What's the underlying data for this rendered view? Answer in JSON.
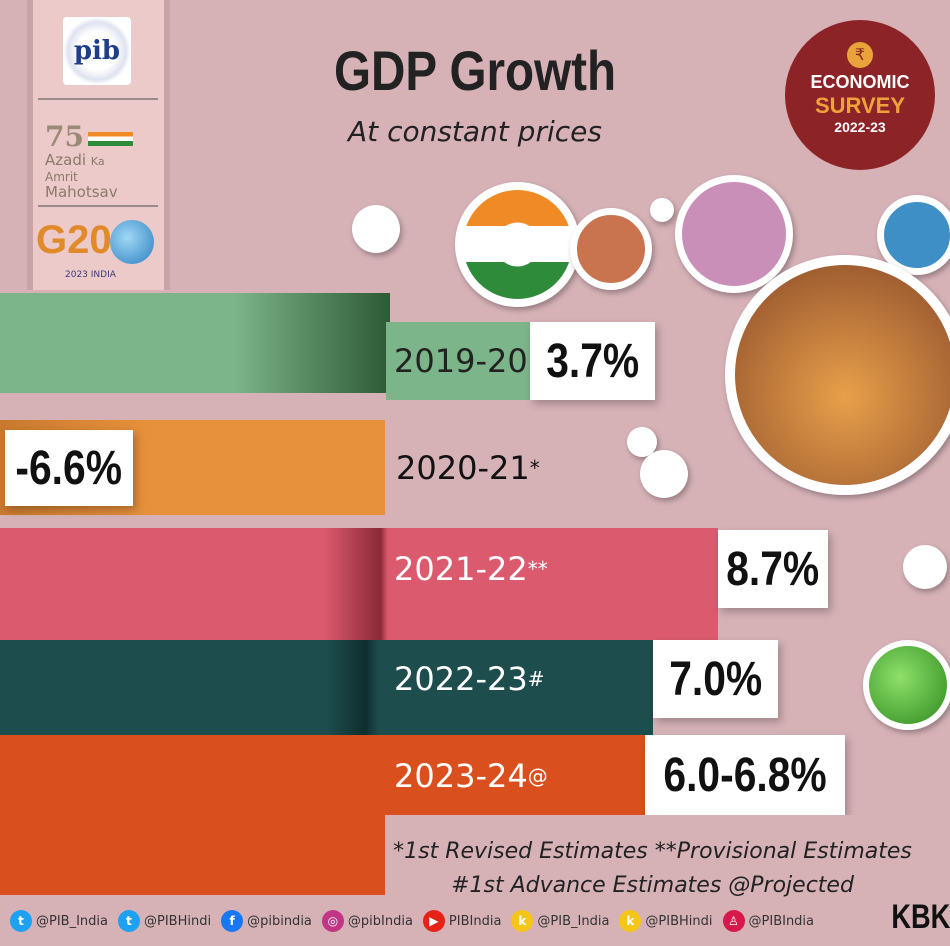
{
  "header": {
    "title": "GDP Growth",
    "subtitle": "At constant prices"
  },
  "logos": {
    "pib": "pib",
    "amrit": [
      "Azadi",
      "Ka",
      "Amrit",
      "Mahotsav"
    ],
    "g20": "G20",
    "g20_sub": "2023 INDIA"
  },
  "badge": {
    "line1": "ECONOMIC",
    "line2": "SURVEY",
    "line3": "2022-23",
    "symbol": "₹"
  },
  "chart_data": {
    "type": "bar",
    "title": "GDP Growth",
    "subtitle": "At constant prices",
    "categories": [
      "2019-20",
      "2020-21",
      "2021-22",
      "2022-23",
      "2023-24"
    ],
    "markers": [
      "",
      "*",
      "**",
      "#",
      "@"
    ],
    "values": [
      3.7,
      -6.6,
      8.7,
      7.0,
      [
        6.0,
        6.8
      ]
    ],
    "value_labels": [
      "3.7%",
      "-6.6%",
      "8.7%",
      "7.0%",
      "6.0-6.8%"
    ],
    "colors": [
      "#7db58a",
      "#e8913c",
      "#dc5a6e",
      "#1e4d4d",
      "#d9501e"
    ]
  },
  "footnotes": {
    "line1": "*1st Revised Estimates **Provisional Estimates",
    "line2": "#1st Advance Estimates @Projected"
  },
  "footer": {
    "handles": [
      {
        "icon": "twitter-icon",
        "text": "@PIB_India",
        "color": "#1da1f2"
      },
      {
        "icon": "twitter-icon",
        "text": "@PIBHindi",
        "color": "#1da1f2"
      },
      {
        "icon": "facebook-icon",
        "text": "@pibindia",
        "color": "#1877f2"
      },
      {
        "icon": "instagram-icon",
        "text": "@pibIndia",
        "color": "#c13584"
      },
      {
        "icon": "youtube-icon",
        "text": "PIBIndia",
        "color": "#e62117"
      },
      {
        "icon": "koo-icon",
        "text": "@PIB_India",
        "color": "#f5c518"
      },
      {
        "icon": "koo-icon",
        "text": "@PIBHindi",
        "color": "#f5c518"
      },
      {
        "icon": "sharechat-icon",
        "text": "@PIBIndia",
        "color": "#d6184a"
      }
    ],
    "credit": "KBK"
  }
}
